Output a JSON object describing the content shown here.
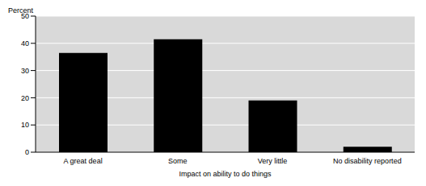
{
  "chart_data": {
    "type": "bar",
    "ylabel": "Percent",
    "xlabel": "Impact on ability to do things",
    "categories": [
      "A great deal",
      "Some",
      "Very little",
      "No disability reported"
    ],
    "values": [
      36.5,
      41.5,
      19,
      2
    ],
    "color": "#000000",
    "ylim": [
      0,
      50
    ],
    "yticks": [
      0,
      10,
      20,
      30,
      40,
      50
    ],
    "grid": true
  }
}
